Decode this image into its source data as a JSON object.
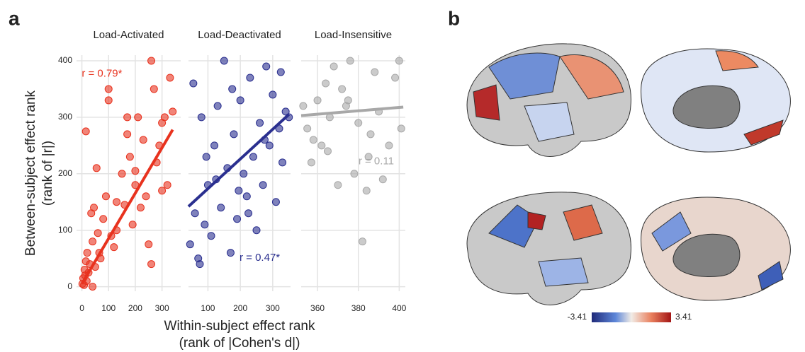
{
  "figure": {
    "panel_labels": [
      "a",
      "b"
    ],
    "x_label": "Within-subject effect rank",
    "x_label_sub": "(rank of |Cohen's d|)",
    "y_label": "Between-subject effect rank",
    "y_label_sub": "(rank of |r|)"
  },
  "chart_data": [
    {
      "type": "scatter",
      "title": "Load-Activated",
      "color": "#e8321e",
      "annotation": "r = 0.79*",
      "xlim": [
        -20,
        370
      ],
      "xticks": [
        0,
        100,
        200,
        300
      ],
      "ylim": [
        -8,
        410
      ],
      "yticks": [
        0,
        100,
        200,
        300,
        400
      ],
      "grid": true,
      "x": [
        2,
        5,
        8,
        10,
        12,
        15,
        18,
        20,
        25,
        30,
        35,
        40,
        45,
        50,
        55,
        60,
        70,
        80,
        90,
        100,
        110,
        120,
        130,
        150,
        160,
        170,
        180,
        190,
        200,
        210,
        220,
        230,
        240,
        250,
        260,
        270,
        280,
        290,
        300,
        310,
        320,
        330,
        340,
        15,
        40,
        65,
        100,
        130,
        170,
        200,
        260,
        300
      ],
      "y": [
        5,
        15,
        3,
        30,
        20,
        45,
        10,
        60,
        25,
        40,
        130,
        80,
        140,
        35,
        210,
        95,
        50,
        120,
        160,
        350,
        90,
        70,
        100,
        200,
        145,
        300,
        230,
        110,
        180,
        300,
        140,
        260,
        160,
        75,
        400,
        350,
        220,
        250,
        170,
        300,
        180,
        370,
        310,
        275,
        0,
        60,
        330,
        150,
        270,
        205,
        40,
        290
      ],
      "fit": {
        "x": [
          0,
          340
        ],
        "y": [
          5,
          278
        ]
      }
    },
    {
      "type": "scatter",
      "title": "Load-Deactivated",
      "color": "#2a2f8f",
      "annotation": "r = 0.47*",
      "xlim": [
        40,
        355
      ],
      "xticks": [
        100,
        200,
        300
      ],
      "ylim": [
        -8,
        410
      ],
      "grid": true,
      "x": [
        45,
        55,
        60,
        70,
        80,
        90,
        100,
        110,
        120,
        130,
        140,
        150,
        160,
        170,
        180,
        190,
        200,
        210,
        220,
        230,
        240,
        250,
        260,
        270,
        280,
        290,
        300,
        310,
        320,
        330,
        340,
        350,
        75,
        125,
        175,
        225,
        275,
        325,
        95,
        195
      ],
      "y": [
        75,
        360,
        130,
        50,
        300,
        110,
        180,
        90,
        250,
        320,
        140,
        400,
        210,
        60,
        270,
        120,
        330,
        200,
        160,
        370,
        230,
        100,
        290,
        180,
        390,
        250,
        340,
        150,
        280,
        220,
        310,
        300,
        40,
        190,
        350,
        130,
        260,
        380,
        230,
        170
      ],
      "fit": {
        "x": [
          40,
          350
        ],
        "y": [
          142,
          305
        ]
      }
    },
    {
      "type": "scatter",
      "title": "Load-Insensitive",
      "color": "#a8a8a8",
      "annotation": "r = 0.11",
      "xlim": [
        352,
        403
      ],
      "xticks": [
        360,
        380,
        400
      ],
      "ylim": [
        -8,
        410
      ],
      "grid": true,
      "x": [
        353,
        355,
        357,
        358,
        360,
        362,
        364,
        366,
        368,
        370,
        372,
        374,
        376,
        378,
        380,
        382,
        384,
        386,
        388,
        390,
        392,
        395,
        398,
        400,
        401,
        365,
        375,
        385
      ],
      "y": [
        320,
        280,
        220,
        260,
        330,
        250,
        360,
        300,
        390,
        180,
        350,
        320,
        400,
        200,
        290,
        80,
        170,
        270,
        380,
        310,
        190,
        250,
        370,
        400,
        280,
        240,
        330,
        230
      ],
      "fit": {
        "x": [
          352,
          402
        ],
        "y": [
          303,
          318
        ]
      }
    }
  ],
  "colorbar": {
    "ticks": [
      -3.41,
      3.41
    ]
  }
}
